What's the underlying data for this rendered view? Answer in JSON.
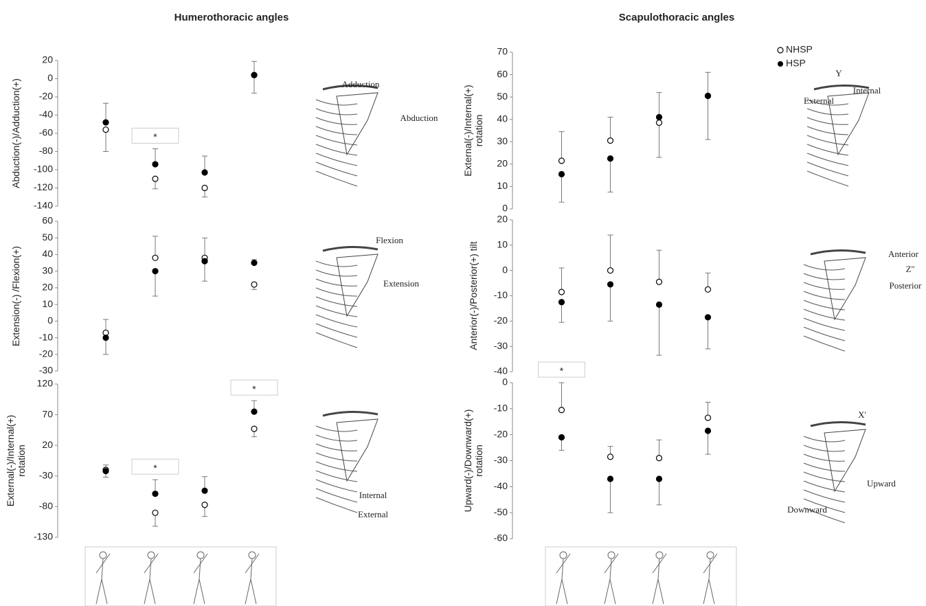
{
  "headings": [
    "Humerothoracic angles",
    "Scapulothoracic angles"
  ],
  "chart_data": [
    {
      "type": "errorbar",
      "ylabel": [
        "Abduction(-)/Adduction(+)"
      ],
      "categories": [
        null,
        null,
        null,
        null
      ],
      "ylim": [
        -140,
        20
      ],
      "yticks": [
        -140,
        -120,
        -100,
        -80,
        -60,
        -40,
        -20,
        0,
        20
      ],
      "grid": false,
      "markers": [
        null,
        "*",
        null,
        null
      ],
      "series": [
        {
          "name": "NHSP",
          "color": "#000000",
          "marker": "open",
          "values": [
            -56,
            -110,
            -120,
            4
          ],
          "err_up": [
            null,
            null,
            null,
            null
          ],
          "err_down": [
            24,
            11,
            10,
            null
          ]
        },
        {
          "name": "HSP",
          "color": "#000000",
          "marker": "filled",
          "values": [
            -48,
            -94,
            -103,
            4
          ],
          "err_up": [
            21,
            17,
            18,
            15
          ],
          "err_down": [
            null,
            null,
            null,
            20
          ]
        }
      ],
      "diagram_labels": [
        "Adduction",
        "Abduction"
      ]
    },
    {
      "type": "errorbar",
      "ylabel": [
        "Extension(-) /Flexion(+)"
      ],
      "categories": [
        null,
        null,
        null,
        null
      ],
      "ylim": [
        -30,
        60
      ],
      "yticks": [
        -30,
        -20,
        -10,
        0,
        10,
        20,
        30,
        40,
        50,
        60
      ],
      "grid": false,
      "markers": [
        null,
        null,
        null,
        null
      ],
      "series": [
        {
          "name": "NHSP",
          "color": "#000000",
          "marker": "open",
          "values": [
            -7,
            38,
            38,
            22
          ],
          "err_up": [
            8,
            13,
            12,
            null
          ],
          "err_down": [
            null,
            null,
            null,
            3
          ]
        },
        {
          "name": "HSP",
          "color": "#000000",
          "marker": "filled",
          "values": [
            -10,
            30,
            36,
            35
          ],
          "err_up": [
            null,
            null,
            null,
            2
          ],
          "err_down": [
            10,
            15,
            12,
            null
          ]
        }
      ],
      "diagram_labels": [
        "Flexion",
        "Extension"
      ]
    },
    {
      "type": "errorbar",
      "ylabel": [
        "External(-)/Internal(+)",
        "rotation"
      ],
      "categories": [
        null,
        null,
        null,
        null
      ],
      "ylim": [
        -130,
        120
      ],
      "yticks": [
        -130,
        -80,
        -30,
        20,
        70,
        120
      ],
      "grid": false,
      "markers": [
        null,
        "*",
        null,
        "*"
      ],
      "series": [
        {
          "name": "NHSP",
          "color": "#000000",
          "marker": "open",
          "values": [
            -20,
            -90,
            -77,
            47
          ],
          "err_up": [
            null,
            null,
            null,
            null
          ],
          "err_down": [
            12,
            22,
            19,
            13
          ]
        },
        {
          "name": "HSP",
          "color": "#000000",
          "marker": "filled",
          "values": [
            -22,
            -59,
            -54,
            75
          ],
          "err_up": [
            10,
            23,
            23,
            18
          ],
          "err_down": [
            null,
            null,
            null,
            null
          ]
        }
      ],
      "diagram_labels": [
        "Internal",
        "External"
      ]
    },
    {
      "type": "errorbar",
      "ylabel": [
        "External(-)/Internal(+)",
        "rotation"
      ],
      "categories": [
        null,
        null,
        null,
        null
      ],
      "ylim": [
        0,
        70
      ],
      "yticks": [
        0,
        10,
        20,
        30,
        40,
        50,
        60,
        70
      ],
      "grid": false,
      "markers": [
        null,
        null,
        null,
        null
      ],
      "series": [
        {
          "name": "NHSP",
          "color": "#000000",
          "marker": "open",
          "values": [
            21.5,
            30.5,
            38.5,
            50.5
          ],
          "err_up": [
            13,
            10.5,
            null,
            null
          ],
          "err_down": [
            null,
            null,
            15.5,
            19.5
          ]
        },
        {
          "name": "HSP",
          "color": "#000000",
          "marker": "filled",
          "values": [
            15.5,
            22.5,
            41,
            50.5
          ],
          "err_up": [
            null,
            null,
            11,
            10.5
          ],
          "err_down": [
            12.5,
            15,
            null,
            null
          ]
        }
      ],
      "diagram_labels": [
        "Y",
        "Internal",
        "External"
      ]
    },
    {
      "type": "errorbar",
      "ylabel": [
        "Anterior(-)/Posterior(+) tilt"
      ],
      "categories": [
        null,
        null,
        null,
        null
      ],
      "ylim": [
        -40,
        20
      ],
      "yticks": [
        -40,
        -30,
        -20,
        -10,
        0,
        10,
        20
      ],
      "grid": false,
      "markers": [
        null,
        null,
        null,
        null
      ],
      "series": [
        {
          "name": "NHSP",
          "color": "#000000",
          "marker": "open",
          "values": [
            -8.5,
            0,
            -4.5,
            -7.5
          ],
          "err_up": [
            9.5,
            14,
            12.5,
            6.5
          ],
          "err_down": [
            null,
            null,
            null,
            null
          ]
        },
        {
          "name": "HSP",
          "color": "#000000",
          "marker": "filled",
          "values": [
            -12.5,
            -5.5,
            -13.5,
            -18.5
          ],
          "err_up": [
            null,
            null,
            null,
            null
          ],
          "err_down": [
            8,
            14.5,
            20,
            12.5
          ]
        }
      ],
      "diagram_labels": [
        "Anterior",
        "Z''",
        "Posterior"
      ]
    },
    {
      "type": "errorbar",
      "ylabel": [
        "Upward(-)/Downward(+)",
        "rotation"
      ],
      "categories": [
        null,
        null,
        null,
        null
      ],
      "ylim": [
        -60,
        0
      ],
      "yticks": [
        -60,
        -50,
        -40,
        -30,
        -20,
        -10,
        0
      ],
      "grid": false,
      "markers": [
        "*",
        null,
        null,
        null
      ],
      "series": [
        {
          "name": "NHSP",
          "color": "#000000",
          "marker": "open",
          "values": [
            -10.5,
            -28.5,
            -29,
            -13.5
          ],
          "err_up": [
            10.5,
            4,
            7,
            6
          ],
          "err_down": [
            null,
            null,
            null,
            null
          ]
        },
        {
          "name": "HSP",
          "color": "#000000",
          "marker": "filled",
          "values": [
            -21,
            -37,
            -37,
            -18.5
          ],
          "err_up": [
            null,
            null,
            null,
            null
          ],
          "err_down": [
            5,
            13,
            10,
            9
          ]
        }
      ],
      "diagram_labels": [
        "X'",
        "Upward",
        "Downward"
      ]
    }
  ]
}
